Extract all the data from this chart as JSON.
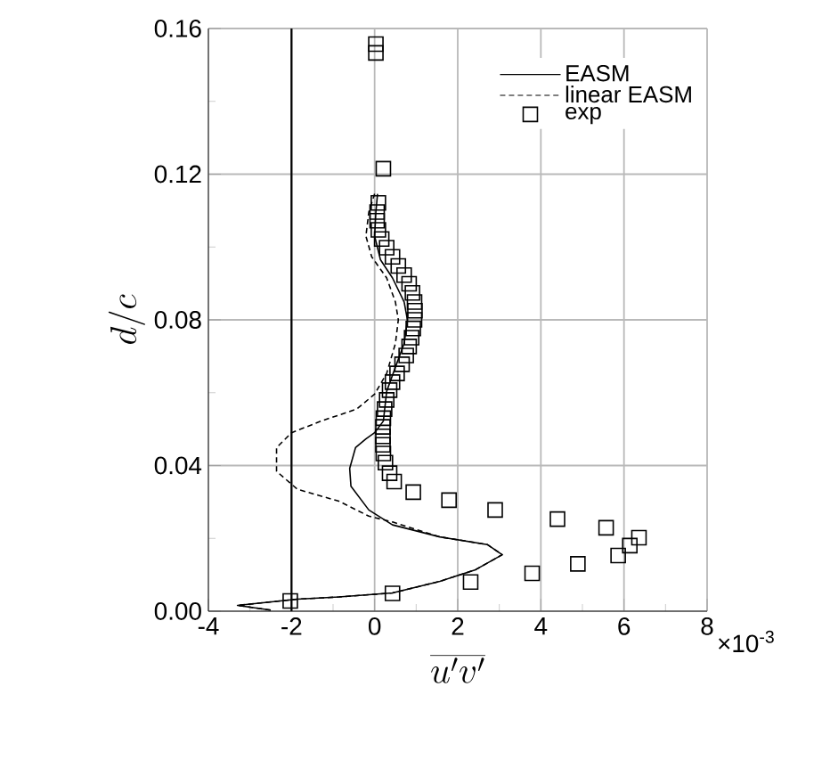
{
  "chart_data": {
    "type": "line",
    "xlabel": "\\overline{u'v'}",
    "ylabel": "d/c",
    "annotations": [
      "×10$^{-3}$"
    ],
    "xlim": [
      -4,
      8
    ],
    "xticks": [
      -4,
      -2,
      0,
      2,
      4,
      6,
      8
    ],
    "ylim": [
      0,
      0.16
    ],
    "yticks": [
      {
        "value": 0,
        "label": "0.00"
      },
      {
        "value": 0.04,
        "label": "0.04"
      },
      {
        "value": 0.08,
        "label": "0.08"
      },
      {
        "value": 0.12,
        "label": "0.12"
      },
      {
        "value": 0.16,
        "label": "0.16"
      }
    ],
    "grid": true,
    "legend": "top right",
    "ref_lines": [
      {
        "axis": "x",
        "value": -2,
        "color": "#000000"
      }
    ],
    "series": [
      {
        "name": "EASM",
        "line_style": "solid",
        "marker": "none",
        "color": "#000000",
        "x": [
          -2.5,
          -3.3,
          -1.86,
          -0.86,
          0.43,
          1.57,
          2.43,
          3.07,
          2.71,
          1.57,
          0.43,
          -0.14,
          -0.57,
          -0.6,
          -0.46,
          -0.21,
          0,
          0.21,
          0.29,
          0.5,
          0.71,
          0.79,
          0.71,
          0.43,
          0.14,
          0,
          0.03,
          0.07
        ],
        "values": [
          0.0003,
          0.0016,
          0.0033,
          0.0039,
          0.005,
          0.0082,
          0.0114,
          0.0155,
          0.0183,
          0.0204,
          0.0237,
          0.0278,
          0.0343,
          0.0392,
          0.0449,
          0.0473,
          0.049,
          0.0522,
          0.0604,
          0.067,
          0.0735,
          0.08,
          0.0849,
          0.0915,
          0.0965,
          0.103,
          0.1096,
          0.1146
        ]
      },
      {
        "name": "linear  EASM",
        "line_style": "dashed",
        "marker": "none",
        "color": "#000000",
        "x": [
          -2.5,
          -3.3,
          -1.86,
          -0.86,
          0.43,
          1.57,
          2.43,
          3.07,
          2.71,
          1.57,
          0.43,
          -0.14,
          -0.86,
          -1.86,
          -2.36,
          -2.36,
          -2,
          -1.29,
          -0.43,
          0,
          0.29,
          0.5,
          0.57,
          0.5,
          0.29,
          -0.07,
          -0.21,
          -0.14,
          0
        ],
        "values": [
          0.0003,
          0.0016,
          0.0033,
          0.0039,
          0.005,
          0.0082,
          0.0114,
          0.0155,
          0.0183,
          0.0204,
          0.0245,
          0.0261,
          0.0302,
          0.0335,
          0.0384,
          0.0449,
          0.049,
          0.0522,
          0.0555,
          0.0596,
          0.0653,
          0.0735,
          0.08,
          0.0849,
          0.0915,
          0.0973,
          0.103,
          0.1096,
          0.1146
        ]
      },
      {
        "name": "exp",
        "type": "scatter",
        "marker": "square",
        "color": "#000000",
        "x": [
          -2.03,
          0.43,
          2.31,
          3.79,
          4.89,
          5.86,
          6.14,
          6.36,
          5.57,
          4.4,
          2.9,
          1.79,
          0.93,
          0.47,
          0.36,
          0.26,
          0.21,
          0.2,
          0.2,
          0.2,
          0.21,
          0.24,
          0.29,
          0.36,
          0.43,
          0.54,
          0.66,
          0.76,
          0.83,
          0.89,
          0.93,
          0.96,
          0.97,
          0.96,
          0.91,
          0.83,
          0.71,
          0.57,
          0.43,
          0.29,
          0.17,
          0.09,
          0.06,
          0.06,
          0.09,
          0.21,
          0.03,
          0.03
        ],
        "values": [
          0.0028,
          0.0049,
          0.008,
          0.0104,
          0.013,
          0.0153,
          0.018,
          0.0202,
          0.0229,
          0.0253,
          0.0278,
          0.0305,
          0.0327,
          0.0356,
          0.0379,
          0.0408,
          0.0433,
          0.0457,
          0.048,
          0.0506,
          0.053,
          0.0555,
          0.058,
          0.0607,
          0.0629,
          0.0653,
          0.0678,
          0.0702,
          0.0727,
          0.0751,
          0.0776,
          0.08,
          0.0825,
          0.0849,
          0.0874,
          0.0899,
          0.0923,
          0.0948,
          0.0973,
          0.0998,
          0.1022,
          0.1047,
          0.1072,
          0.1096,
          0.1121,
          0.1215,
          0.1533,
          0.1557
        ]
      }
    ]
  }
}
